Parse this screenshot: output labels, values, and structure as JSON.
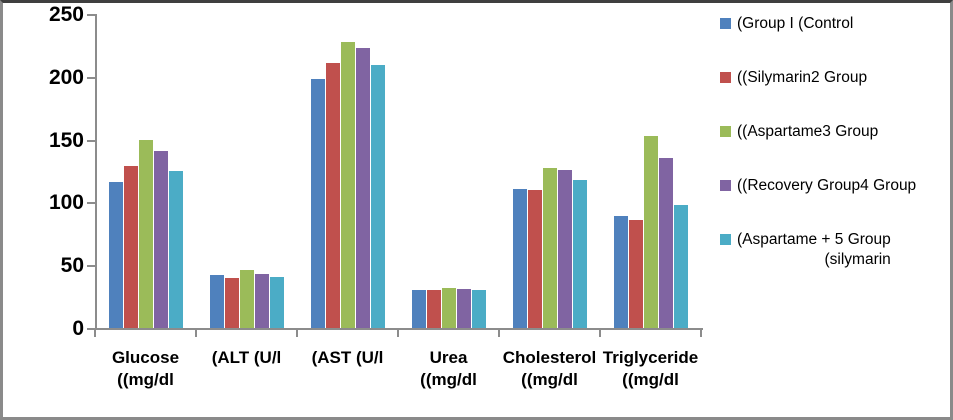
{
  "chart_data": {
    "type": "bar",
    "title": "",
    "xlabel": "",
    "ylabel": "",
    "grid": false,
    "legend_position": "right",
    "y_axis": {
      "min": 0,
      "max": 250,
      "tick_interval": 50,
      "ticks": [
        0,
        50,
        100,
        150,
        200,
        250
      ]
    },
    "categories": [
      "Glucose\n((mg/dl",
      "(ALT (U/l",
      "(AST (U/l",
      "Urea\n((mg/dl",
      "Cholesterol\n((mg/dl",
      "Triglyceride\n((mg/dl"
    ],
    "series": [
      {
        "name": "(Group I (Control",
        "color": "#4F81BD",
        "values": [
          116,
          42,
          198,
          30,
          111,
          89
        ]
      },
      {
        "name": "((Silymarin2 Group",
        "color": "#C0504D",
        "values": [
          129,
          40,
          211,
          30,
          110,
          86
        ]
      },
      {
        "name": "((Aspartame3 Group",
        "color": "#9BBB59",
        "values": [
          150,
          46,
          228,
          32,
          127,
          153
        ]
      },
      {
        "name": "((Recovery Group4 Group",
        "color": "#8064A2",
        "values": [
          141,
          43,
          223,
          31,
          126,
          135
        ]
      },
      {
        "name": "(Aspartame + 5 Group\n(silymarin",
        "color": "#4BACC6",
        "values": [
          125,
          41,
          209,
          30,
          118,
          98
        ]
      }
    ]
  },
  "frame": {
    "background": "#ffffff",
    "border_color": "#8a8a8a",
    "axis_color": "#8c8c8c"
  }
}
